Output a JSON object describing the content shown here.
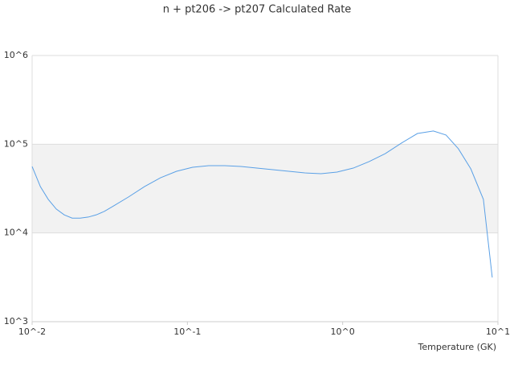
{
  "chart_data": {
    "type": "line",
    "title": "n + pt206 -> pt207 Calculated Rate",
    "x_label": "Temperature (GK)",
    "xscale": "log",
    "yscale": "log",
    "grid": true,
    "xlim": [
      0.01,
      10
    ],
    "ylim": [
      1000,
      1000000
    ],
    "xticks": [
      {
        "value": 0.01,
        "label": "10^-2"
      },
      {
        "value": 0.1,
        "label": "10^-1"
      },
      {
        "value": 1,
        "label": "10^0"
      },
      {
        "value": 10,
        "label": "10^1"
      }
    ],
    "yticks": [
      {
        "value": 1000,
        "label": "10^3"
      },
      {
        "value": 10000,
        "label": "10^4"
      },
      {
        "value": 100000,
        "label": "10^5"
      },
      {
        "value": 1000000,
        "label": "10^6"
      }
    ],
    "series": [
      {
        "color": "#5aa0e6",
        "x": [
          0.01,
          0.0113,
          0.0127,
          0.0143,
          0.0161,
          0.0181,
          0.0204,
          0.023,
          0.0259,
          0.0292,
          0.0329,
          0.0417,
          0.0529,
          0.0671,
          0.0851,
          0.108,
          0.137,
          0.174,
          0.221,
          0.28,
          0.355,
          0.45,
          0.571,
          0.725,
          0.919,
          1.17,
          1.48,
          1.88,
          2.39,
          3.03,
          3.84,
          4.63,
          5.56,
          6.69,
          8.06,
          9.19
        ],
        "values": [
          56100,
          33300,
          23900,
          18600,
          16000,
          14700,
          14700,
          15100,
          16000,
          17500,
          19800,
          25400,
          33300,
          41900,
          49500,
          55000,
          57300,
          57300,
          56100,
          53800,
          51600,
          49500,
          47500,
          46500,
          48500,
          53800,
          63700,
          78300,
          103000,
          132000,
          141000,
          127000,
          88900,
          52700,
          23900,
          3150
        ]
      }
    ]
  }
}
